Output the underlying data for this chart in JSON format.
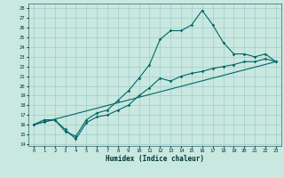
{
  "xlabel": "Humidex (Indice chaleur)",
  "ylabel": "",
  "bg_color": "#c8e8e0",
  "grid_color": "#a0cccc",
  "line_color": "#006666",
  "xlim": [
    -0.5,
    23.5
  ],
  "ylim": [
    13.8,
    28.5
  ],
  "yticks": [
    14,
    15,
    16,
    17,
    18,
    19,
    20,
    21,
    22,
    23,
    24,
    25,
    26,
    27,
    28
  ],
  "xticks": [
    0,
    1,
    2,
    3,
    4,
    5,
    6,
    7,
    8,
    9,
    10,
    11,
    12,
    13,
    14,
    15,
    16,
    17,
    18,
    19,
    20,
    21,
    22,
    23
  ],
  "line1_x": [
    0,
    1,
    2,
    3,
    4,
    5,
    6,
    7,
    8,
    9,
    10,
    11,
    12,
    13,
    14,
    15,
    16,
    17,
    18,
    19,
    20,
    21,
    22,
    23
  ],
  "line1_y": [
    16.0,
    16.5,
    16.5,
    15.3,
    14.8,
    16.5,
    17.2,
    17.5,
    18.5,
    19.5,
    20.8,
    22.2,
    24.8,
    25.7,
    25.7,
    26.3,
    27.8,
    26.3,
    24.5,
    23.3,
    23.3,
    23.0,
    23.3,
    22.5
  ],
  "line2_x": [
    0,
    1,
    2,
    3,
    4,
    5,
    6,
    7,
    8,
    9,
    10,
    11,
    12,
    13,
    14,
    15,
    16,
    17,
    18,
    19,
    20,
    21,
    22,
    23
  ],
  "line2_y": [
    16.0,
    16.3,
    16.5,
    15.5,
    14.5,
    16.2,
    16.8,
    17.0,
    17.5,
    18.0,
    19.0,
    19.8,
    20.8,
    20.5,
    21.0,
    21.3,
    21.5,
    21.8,
    22.0,
    22.2,
    22.5,
    22.5,
    22.8,
    22.5
  ],
  "line3_x": [
    0,
    23
  ],
  "line3_y": [
    16.0,
    22.5
  ]
}
